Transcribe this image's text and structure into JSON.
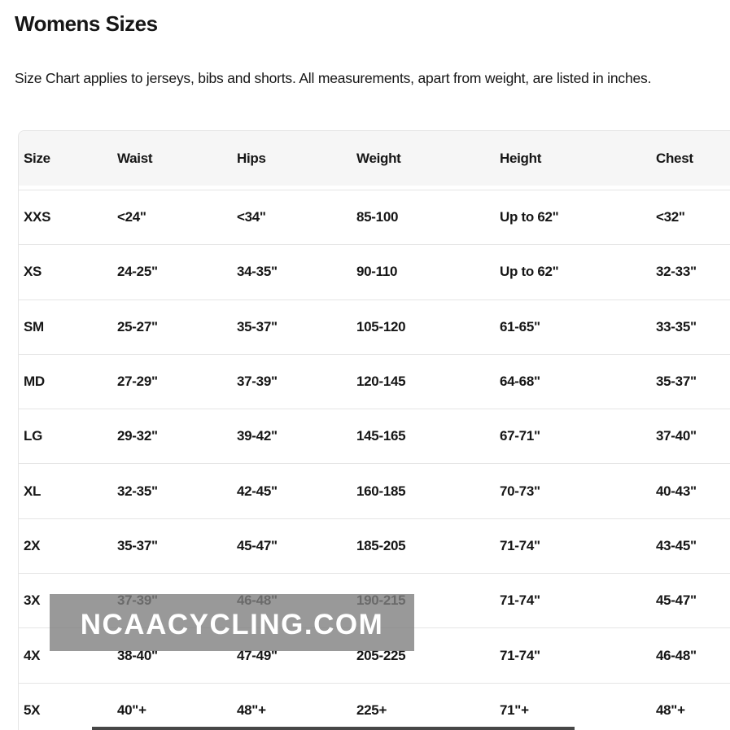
{
  "page": {
    "title": "Womens Sizes",
    "subtitle": "Size Chart applies to jerseys, bibs and shorts. All measurements, apart from weight, are listed in inches."
  },
  "table": {
    "columns": [
      "Size",
      "Waist",
      "Hips",
      "Weight",
      "Height",
      "Chest"
    ],
    "rows": [
      [
        "XXS",
        "<24\"",
        "<34\"",
        "85-100",
        "Up to 62\"",
        "<32\""
      ],
      [
        "XS",
        "24-25\"",
        "34-35\"",
        "90-110",
        "Up to 62\"",
        "32-33\""
      ],
      [
        "SM",
        "25-27\"",
        "35-37\"",
        "105-120",
        "61-65\"",
        "33-35\""
      ],
      [
        "MD",
        "27-29\"",
        "37-39\"",
        "120-145",
        "64-68\"",
        "35-37\""
      ],
      [
        "LG",
        "29-32\"",
        "39-42\"",
        "145-165",
        "67-71\"",
        "37-40\""
      ],
      [
        "XL",
        "32-35\"",
        "42-45\"",
        "160-185",
        "70-73\"",
        "40-43\""
      ],
      [
        "2X",
        "35-37\"",
        "45-47\"",
        "185-205",
        "71-74\"",
        "43-45\""
      ],
      [
        "3X",
        "37-39\"",
        "46-48\"",
        "190-215",
        "71-74\"",
        "45-47\""
      ],
      [
        "4X",
        "38-40\"",
        "47-49\"",
        "205-225",
        "71-74\"",
        "46-48\""
      ],
      [
        "5X",
        "40\"+",
        "48\"+",
        "225+",
        "71\"+",
        "48\"+"
      ]
    ]
  },
  "watermark": {
    "text": "NCAACYCLING.COM"
  },
  "colors": {
    "header_bg": "#f6f6f6",
    "row_border": "#e5e5e5",
    "text": "#161616",
    "watermark_bg": "rgba(128,128,128,0.8)",
    "watermark_text": "#ffffff",
    "bottom_bar": "#474747"
  }
}
